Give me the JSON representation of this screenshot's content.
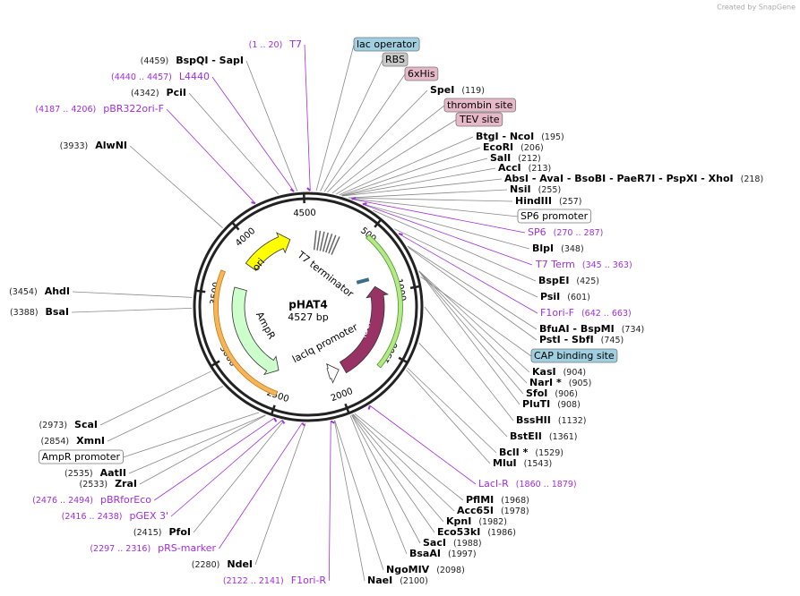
{
  "header": {
    "credit": "Created by SnapGene"
  },
  "map": {
    "name": "pHAT4",
    "length": 4527,
    "unit": "bp",
    "ticks": [
      500,
      1000,
      1500,
      2000,
      2500,
      3000,
      3500,
      4000,
      4500
    ],
    "features": [
      {
        "label": "ori",
        "color": "#ffff00"
      },
      {
        "label": "AmpR",
        "color": "#ccffcc"
      },
      {
        "label": "lacI",
        "color": "#993366"
      },
      {
        "label": "lacIq promoter",
        "color": "#ffffff"
      },
      {
        "label": "T7 terminator",
        "color": "#666666"
      }
    ],
    "labels": [
      {
        "text": "T7",
        "position": "(1 .. 20)",
        "kind": "primer"
      },
      {
        "text": "lac operator",
        "kind": "feature",
        "color": "#9fcfe0"
      },
      {
        "text": "RBS",
        "kind": "feature",
        "color": "#c8c8c8"
      },
      {
        "text": "6xHis",
        "kind": "feature",
        "color": "#e6b8c8"
      },
      {
        "text": "SpeI",
        "position": "(119)",
        "kind": "enzyme"
      },
      {
        "text": "thrombin site",
        "kind": "feature",
        "color": "#e6b8c8"
      },
      {
        "text": "TEV site",
        "kind": "feature",
        "color": "#e6b8c8"
      },
      {
        "text": "BtgI  - NcoI",
        "position": "(195)",
        "kind": "enzyme"
      },
      {
        "text": "EcoRI",
        "position": "(206)",
        "kind": "enzyme"
      },
      {
        "text": "SalI",
        "position": "(212)",
        "kind": "enzyme"
      },
      {
        "text": "AccI",
        "position": "(213)",
        "kind": "enzyme"
      },
      {
        "text": "AbsI  - AvaI  - BsoBI  - PaeR7I  - PspXI  - XhoI",
        "position": "(218)",
        "kind": "enzyme"
      },
      {
        "text": "NsiI",
        "position": "(255)",
        "kind": "enzyme"
      },
      {
        "text": "HindIII",
        "position": "(257)",
        "kind": "enzyme"
      },
      {
        "text": "SP6 promoter",
        "kind": "feature",
        "color": "#ffffff"
      },
      {
        "text": "SP6",
        "position": "(270 .. 287)",
        "kind": "primer"
      },
      {
        "text": "BlpI",
        "position": "(348)",
        "kind": "enzyme"
      },
      {
        "text": "T7 Term",
        "position": "(345 .. 363)",
        "kind": "primer"
      },
      {
        "text": "BspEI",
        "position": "(425)",
        "kind": "enzyme"
      },
      {
        "text": "PsiI",
        "position": "(601)",
        "kind": "enzyme"
      },
      {
        "text": "F1ori-F",
        "position": "(642 .. 663)",
        "kind": "primer"
      },
      {
        "text": "BfuAI  - BspMI",
        "position": "(734)",
        "kind": "enzyme"
      },
      {
        "text": "PstI  - SbfI",
        "position": "(745)",
        "kind": "enzyme"
      },
      {
        "text": "CAP binding site",
        "kind": "feature",
        "color": "#9fcfe0"
      },
      {
        "text": "KasI",
        "position": "(904)",
        "kind": "enzyme"
      },
      {
        "text": "NarI *",
        "position": "(905)",
        "kind": "enzyme"
      },
      {
        "text": "SfoI",
        "position": "(906)",
        "kind": "enzyme"
      },
      {
        "text": "PluTI",
        "position": "(908)",
        "kind": "enzyme"
      },
      {
        "text": "BssHII",
        "position": "(1132)",
        "kind": "enzyme"
      },
      {
        "text": "BstEII",
        "position": "(1361)",
        "kind": "enzyme"
      },
      {
        "text": "BclI *",
        "position": "(1529)",
        "kind": "enzyme"
      },
      {
        "text": "MluI",
        "position": "(1543)",
        "kind": "enzyme"
      },
      {
        "text": "LacI-R",
        "position": "(1860 .. 1879)",
        "kind": "primer"
      },
      {
        "text": "PflMI",
        "position": "(1968)",
        "kind": "enzyme"
      },
      {
        "text": "Acc65I",
        "position": "(1978)",
        "kind": "enzyme"
      },
      {
        "text": "KpnI",
        "position": "(1982)",
        "kind": "enzyme"
      },
      {
        "text": "Eco53kI",
        "position": "(1986)",
        "kind": "enzyme"
      },
      {
        "text": "SacI",
        "position": "(1988)",
        "kind": "enzyme"
      },
      {
        "text": "BsaAI",
        "position": "(1997)",
        "kind": "enzyme"
      },
      {
        "text": "NgoMIV",
        "position": "(2098)",
        "kind": "enzyme"
      },
      {
        "text": "NaeI",
        "position": "(2100)",
        "kind": "enzyme"
      },
      {
        "text": "BspQI  - SapI",
        "position": "(4459)",
        "kind": "enzyme"
      },
      {
        "text": "L4440",
        "position": "(4440 .. 4457)",
        "kind": "primer"
      },
      {
        "text": "PciI",
        "position": "(4342)",
        "kind": "enzyme"
      },
      {
        "text": "pBR322ori-F",
        "position": "(4187 .. 4206)",
        "kind": "primer"
      },
      {
        "text": "AlwNI",
        "position": "(3933)",
        "kind": "enzyme"
      },
      {
        "text": "AhdI",
        "position": "(3454)",
        "kind": "enzyme"
      },
      {
        "text": "BsaI",
        "position": "(3388)",
        "kind": "enzyme"
      },
      {
        "text": "ScaI",
        "position": "(2973)",
        "kind": "enzyme"
      },
      {
        "text": "XmnI",
        "position": "(2854)",
        "kind": "enzyme"
      },
      {
        "text": "AmpR promoter",
        "kind": "feature",
        "color": "#ffffff"
      },
      {
        "text": "AatII",
        "position": "(2535)",
        "kind": "enzyme"
      },
      {
        "text": "ZraI",
        "position": "(2533)",
        "kind": "enzyme"
      },
      {
        "text": "pBRforEco",
        "position": "(2476 .. 2494)",
        "kind": "primer"
      },
      {
        "text": "pGEX 3'",
        "position": "(2416 .. 2438)",
        "kind": "primer"
      },
      {
        "text": "PfoI",
        "position": "(2415)",
        "kind": "enzyme"
      },
      {
        "text": "pRS-marker",
        "position": "(2297 .. 2316)",
        "kind": "primer"
      },
      {
        "text": "NdeI",
        "position": "(2280)",
        "kind": "enzyme"
      },
      {
        "text": "F1ori-R",
        "position": "(2122 .. 2141)",
        "kind": "primer"
      }
    ]
  }
}
